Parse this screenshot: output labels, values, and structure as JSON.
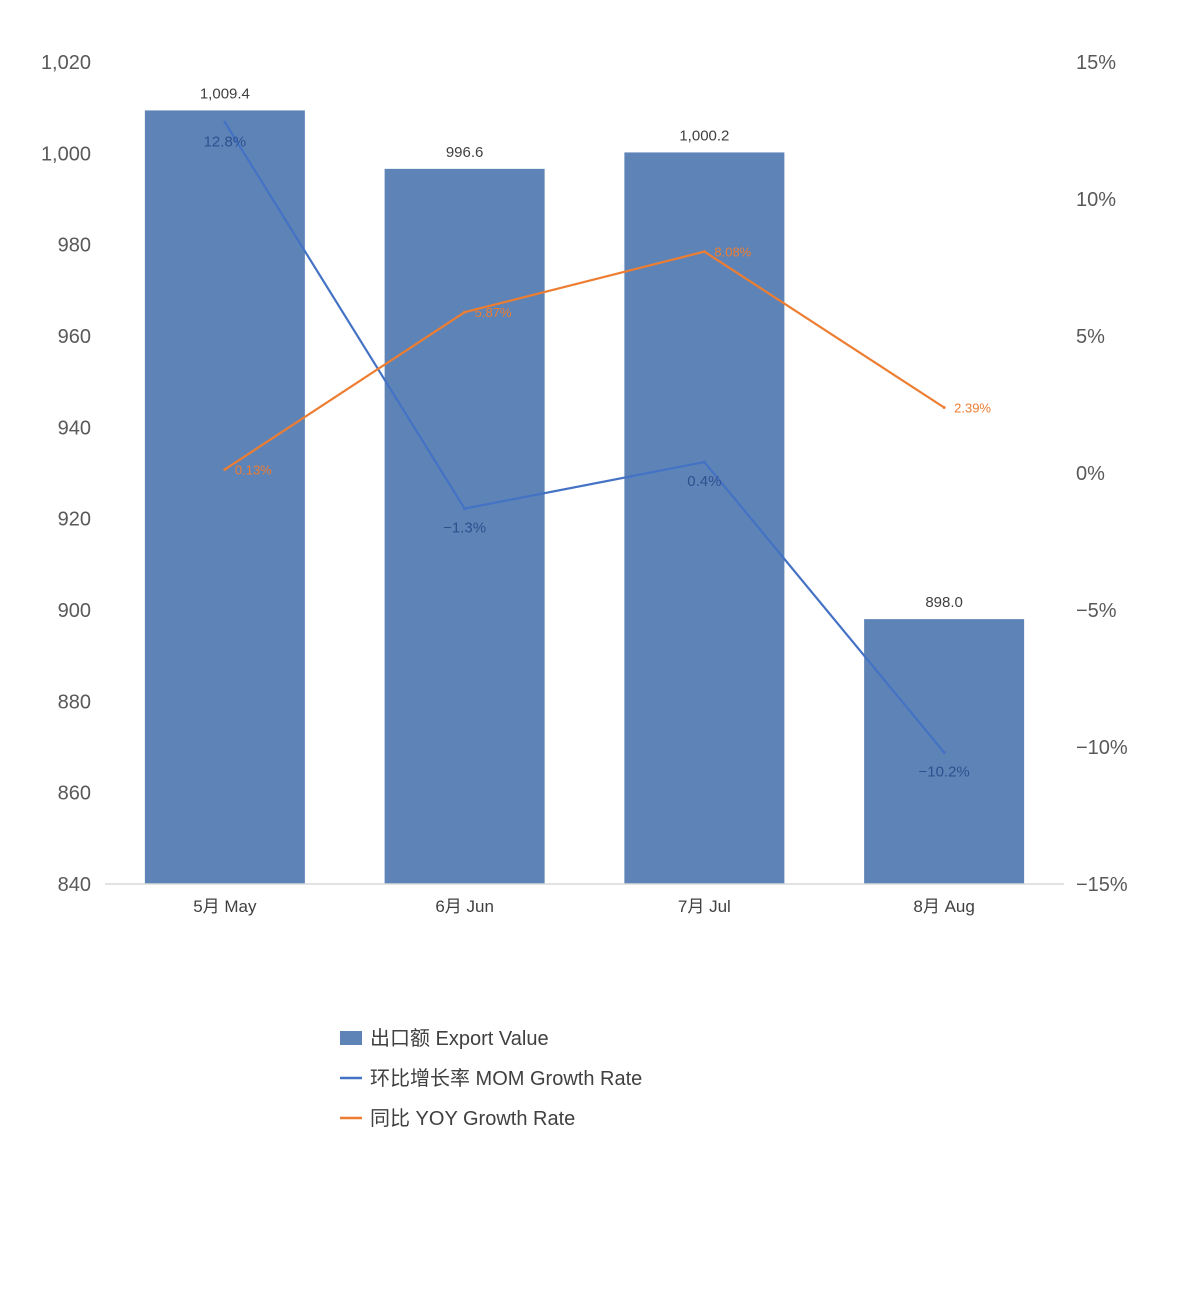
{
  "chart_data": {
    "type": "bar",
    "categories": [
      "5月 May",
      "6月 Jun",
      "7月 Jul",
      "8月 Aug"
    ],
    "series": [
      {
        "name": "出口额 Export Value",
        "type": "bar",
        "axis": "left",
        "values": [
          1009.4,
          996.6,
          1000.2,
          898.0
        ],
        "labels": [
          "1,009.4",
          "996.6",
          "1,000.2",
          "898.0"
        ],
        "color": "#5E84B7"
      },
      {
        "name": "环比增长率 MOM Growth Rate",
        "type": "line",
        "axis": "right",
        "values": [
          12.8,
          -1.3,
          0.4,
          -10.2
        ],
        "labels": [
          "12.8%",
          "−1.3%",
          "0.4%",
          "−10.2%"
        ],
        "color": "#4472C4"
      },
      {
        "name": "同比 YOY Growth Rate",
        "type": "line",
        "axis": "right",
        "values": [
          0.13,
          5.87,
          8.08,
          2.39
        ],
        "labels": [
          "0.13%",
          "5.87%",
          "8.08%",
          "2.39%"
        ],
        "color": "#ED7D31"
      }
    ],
    "left_axis": {
      "ylim": [
        840,
        1020
      ],
      "ticks": [
        840,
        860,
        880,
        900,
        920,
        940,
        960,
        980,
        1000,
        1020
      ],
      "tick_labels": [
        "840",
        "860",
        "880",
        "900",
        "920",
        "940",
        "960",
        "980",
        "1,000",
        "1,020"
      ]
    },
    "right_axis": {
      "ylim": [
        -15,
        15
      ],
      "ticks": [
        -15,
        -10,
        -5,
        0,
        5,
        10,
        15
      ],
      "tick_labels": [
        "−15%",
        "−10%",
        "−5%",
        "0%",
        "5%",
        "10%",
        "15%"
      ]
    },
    "grid": false,
    "legend_position": "bottom"
  }
}
